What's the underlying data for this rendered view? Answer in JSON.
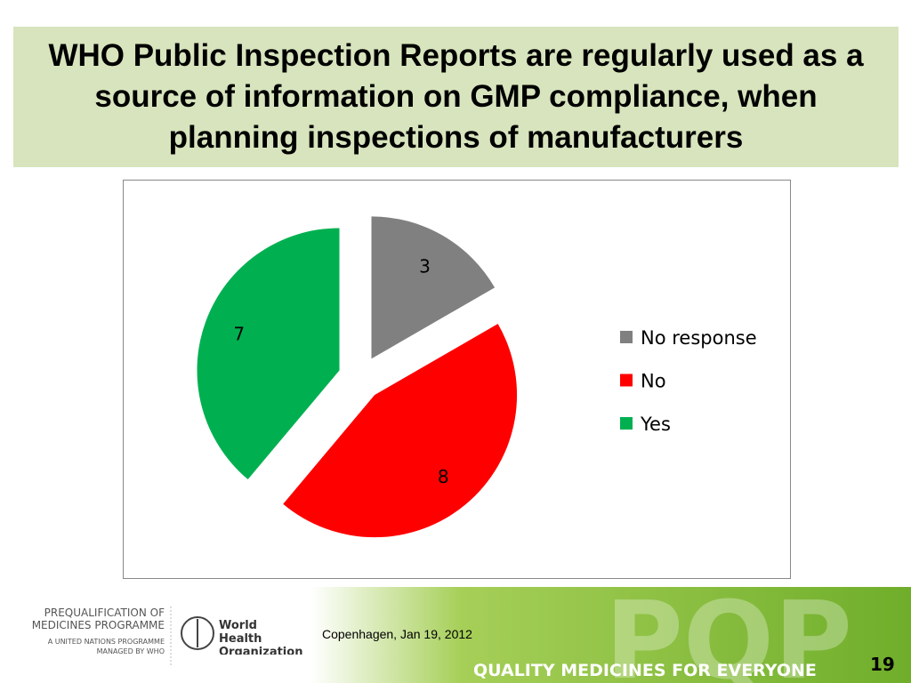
{
  "title": "WHO Public Inspection Reports are regularly used as a source of information on GMP compliance, when planning inspections of manufacturers",
  "chart_data": {
    "type": "pie",
    "categories": [
      "No response",
      "No",
      "Yes"
    ],
    "values": [
      3,
      8,
      7
    ],
    "colors": [
      "#808080",
      "#ff0000",
      "#00b050"
    ],
    "legend": "right"
  },
  "footer": {
    "programme": "PREQUALIFICATION OF MEDICINES PROGRAMME",
    "un": "A UNITED NATIONS PROGRAMME MANAGED BY WHO",
    "who": "World Health Organization",
    "place": "Copenhagen, Jan 19, 2012",
    "brand": "PQP",
    "slogan": "QUALITY MEDICINES FOR EVERYONE",
    "page": "19"
  }
}
